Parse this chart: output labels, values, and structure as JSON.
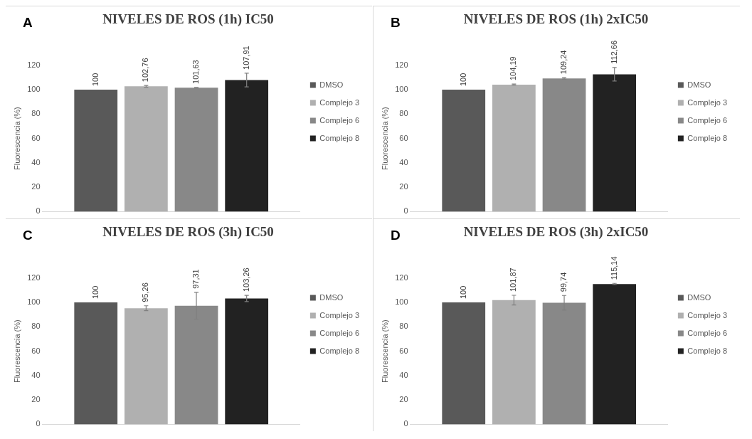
{
  "chart_data": [
    {
      "type": "bar",
      "title": "NIVELES DE ROS (1h) IC50",
      "ylabel": "Fluorescencia (%)",
      "annotations": [
        "A"
      ],
      "categories": [
        null
      ],
      "ylim": [
        0,
        120
      ],
      "yticks": [
        0,
        20,
        40,
        60,
        80,
        100,
        120
      ],
      "legend": "right",
      "grid": false,
      "series": [
        {
          "name": "DMSO",
          "color": "#595959",
          "values": [
            100
          ],
          "errors": [
            null
          ],
          "value_labels": [
            "100"
          ]
        },
        {
          "name": "Complejo 3",
          "color": "#b0b0b0",
          "values": [
            102.76
          ],
          "errors": [
            0.7
          ],
          "value_labels": [
            "102,76"
          ]
        },
        {
          "name": "Complejo 6",
          "color": "#888888",
          "values": [
            101.63
          ],
          "errors": [
            0.2
          ],
          "value_labels": [
            "101,63"
          ]
        },
        {
          "name": "Complejo 8",
          "color": "#222222",
          "values": [
            107.91
          ],
          "errors": [
            5.6
          ],
          "value_labels": [
            "107,91"
          ]
        }
      ]
    },
    {
      "type": "bar",
      "title": "NIVELES DE ROS (1h) 2xIC50",
      "ylabel": "Fluorescencia (%)",
      "annotations": [
        "B"
      ],
      "categories": [
        null
      ],
      "ylim": [
        0,
        120
      ],
      "yticks": [
        0,
        20,
        40,
        60,
        80,
        100,
        120
      ],
      "legend": "right",
      "grid": false,
      "series": [
        {
          "name": "DMSO",
          "color": "#595959",
          "values": [
            100
          ],
          "errors": [
            null
          ],
          "value_labels": [
            "100"
          ]
        },
        {
          "name": "Complejo 3",
          "color": "#b0b0b0",
          "values": [
            104.19
          ],
          "errors": [
            0.5
          ],
          "value_labels": [
            "104,19"
          ]
        },
        {
          "name": "Complejo 6",
          "color": "#888888",
          "values": [
            109.24
          ],
          "errors": [
            0.6
          ],
          "value_labels": [
            "109,24"
          ]
        },
        {
          "name": "Complejo 8",
          "color": "#222222",
          "values": [
            112.66
          ],
          "errors": [
            5.6
          ],
          "value_labels": [
            "112,66"
          ]
        }
      ]
    },
    {
      "type": "bar",
      "title": "NIVELES DE ROS (3h) IC50",
      "ylabel": "Fluorescencia (%)",
      "annotations": [
        "C"
      ],
      "categories": [
        null
      ],
      "ylim": [
        0,
        120
      ],
      "yticks": [
        0,
        20,
        40,
        60,
        80,
        100,
        120
      ],
      "legend": "right",
      "grid": false,
      "series": [
        {
          "name": "DMSO",
          "color": "#595959",
          "values": [
            100
          ],
          "errors": [
            null
          ],
          "value_labels": [
            "100"
          ]
        },
        {
          "name": "Complejo 3",
          "color": "#b0b0b0",
          "values": [
            95.26
          ],
          "errors": [
            2
          ],
          "value_labels": [
            "95,26"
          ]
        },
        {
          "name": "Complejo 6",
          "color": "#888888",
          "values": [
            97.31
          ],
          "errors": [
            11
          ],
          "value_labels": [
            "97,31"
          ]
        },
        {
          "name": "Complejo 8",
          "color": "#222222",
          "values": [
            103.26
          ],
          "errors": [
            2.6
          ],
          "value_labels": [
            "103,26"
          ]
        }
      ]
    },
    {
      "type": "bar",
      "title": "NIVELES DE ROS (3h) 2xIC50",
      "ylabel": "Fluorescencia (%)",
      "annotations": [
        "D"
      ],
      "categories": [
        null
      ],
      "ylim": [
        0,
        120
      ],
      "yticks": [
        0,
        20,
        40,
        60,
        80,
        100,
        120
      ],
      "legend": "right",
      "grid": false,
      "series": [
        {
          "name": "DMSO",
          "color": "#595959",
          "values": [
            100
          ],
          "errors": [
            null
          ],
          "value_labels": [
            "100"
          ]
        },
        {
          "name": "Complejo 3",
          "color": "#b0b0b0",
          "values": [
            101.87
          ],
          "errors": [
            4
          ],
          "value_labels": [
            "101,87"
          ]
        },
        {
          "name": "Complejo 6",
          "color": "#888888",
          "values": [
            99.74
          ],
          "errors": [
            6
          ],
          "value_labels": [
            "99,74"
          ]
        },
        {
          "name": "Complejo 8",
          "color": "#222222",
          "values": [
            115.14
          ],
          "errors": [
            0.5
          ],
          "value_labels": [
            "115,14"
          ]
        }
      ]
    }
  ]
}
